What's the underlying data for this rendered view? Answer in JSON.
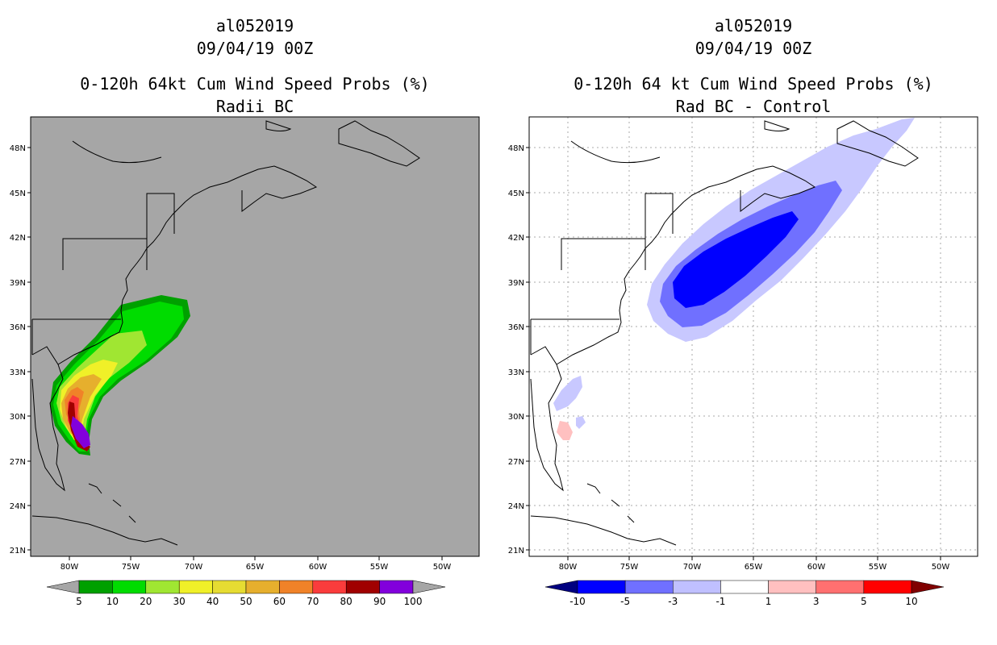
{
  "panels": [
    {
      "storm_id": "al052019",
      "datetime": "09/04/19 00Z",
      "title": "0-120h 64kt Cum Wind Speed Probs (%)",
      "subtitle": "Radii BC",
      "background_color": "#a6a6a6",
      "lat_labels": [
        "48N",
        "45N",
        "42N",
        "39N",
        "36N",
        "33N",
        "30N",
        "27N",
        "24N",
        "21N"
      ],
      "lon_labels": [
        "80W",
        "75W",
        "70W",
        "65W",
        "60W",
        "55W",
        "50W"
      ],
      "colorbar": {
        "labels": [
          "5",
          "10",
          "20",
          "30",
          "40",
          "50",
          "60",
          "70",
          "80",
          "90",
          "100"
        ],
        "colors": [
          "#a6a6a6",
          "#00a000",
          "#00dc00",
          "#a0e632",
          "#f0f028",
          "#e6dc32",
          "#e6af2d",
          "#f08228",
          "#fa3c3c",
          "#a00000",
          "#8200dc",
          "#a6a6a6"
        ]
      }
    },
    {
      "storm_id": "al052019",
      "datetime": "09/04/19 00Z",
      "title": "0-120h 64 kt Cum Wind Speed Probs (%)",
      "subtitle": "Rad BC - Control",
      "background_color": "#ffffff",
      "lat_labels": [
        "48N",
        "45N",
        "42N",
        "39N",
        "36N",
        "33N",
        "30N",
        "27N",
        "24N",
        "21N"
      ],
      "lon_labels": [
        "80W",
        "75W",
        "70W",
        "65W",
        "60W",
        "55W",
        "50W"
      ],
      "colorbar": {
        "labels": [
          "-10",
          "-5",
          "-3",
          "-1",
          "1",
          "3",
          "5",
          "10"
        ],
        "colors": [
          "#000080",
          "#0000ff",
          "#7070ff",
          "#c0c0ff",
          "#ffffff",
          "#ffc0c0",
          "#ff7070",
          "#ff0000",
          "#800000"
        ]
      }
    }
  ]
}
